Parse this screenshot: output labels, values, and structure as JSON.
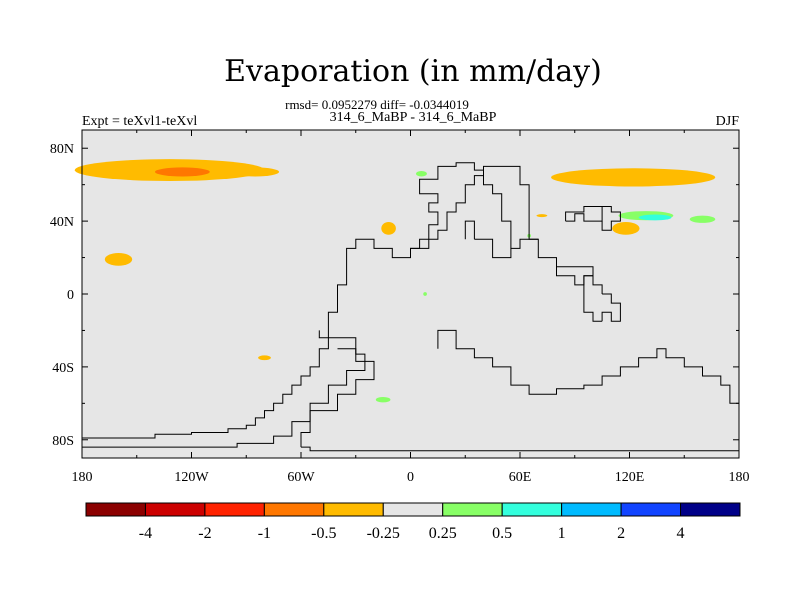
{
  "chart_data": {
    "type": "heatmap",
    "title": "Evaporation (in mm/day)",
    "stats_line": "rmsd= 0.0952279 diff= -0.0344019",
    "left_label": "Expt = teXvl1-teXvl",
    "center_label": "314_6_MaBP - 314_6_MaBP",
    "right_label": "DJF",
    "x_ticks": [
      "180",
      "120W",
      "60W",
      "0",
      "60E",
      "120E",
      "180"
    ],
    "y_ticks": [
      "80N",
      "40N",
      "0",
      "40S",
      "80S"
    ],
    "xlim": [
      -180,
      180
    ],
    "ylim": [
      -90,
      90
    ],
    "colorbar": {
      "labels": [
        "-4",
        "-2",
        "-1",
        "-0.5",
        "-0.25",
        "0.25",
        "0.5",
        "1",
        "2",
        "4"
      ],
      "colors": [
        "#8b0000",
        "#cc0000",
        "#ff2200",
        "#ff7700",
        "#ffbb00",
        "#e6e6e6",
        "#88ff66",
        "#33ffdd",
        "#00bbff",
        "#1144ff",
        "#000088"
      ]
    },
    "background_color": "#e6e6e6",
    "anomalies": [
      {
        "lon": -132,
        "lat": 68,
        "rx": 52,
        "ry": 6,
        "color": "#ffbb00",
        "range": "-0.5 to -0.25"
      },
      {
        "lon": -125,
        "lat": 67,
        "rx": 15,
        "ry": 2.5,
        "color": "#ff7700",
        "range": "-1 to -0.5"
      },
      {
        "lon": -85,
        "lat": 67,
        "rx": 13,
        "ry": 2.5,
        "color": "#ffbb00",
        "range": "-0.5 to -0.25"
      },
      {
        "lon": 122,
        "lat": 64,
        "rx": 45,
        "ry": 5,
        "color": "#ffbb00",
        "range": "-0.5 to -0.25"
      },
      {
        "lon": -160,
        "lat": 19,
        "rx": 7.5,
        "ry": 3.5,
        "color": "#ffbb00",
        "range": "-0.5 to -0.25"
      },
      {
        "lon": -12,
        "lat": 36,
        "rx": 4,
        "ry": 3.5,
        "color": "#ffbb00",
        "range": "-0.5 to -0.25"
      },
      {
        "lon": 118,
        "lat": 36,
        "rx": 7.5,
        "ry": 3.5,
        "color": "#ffbb00",
        "range": "-0.5 to -0.25"
      },
      {
        "lon": -80,
        "lat": -35,
        "rx": 3.5,
        "ry": 1.3,
        "color": "#ffbb00",
        "range": "-0.5 to -0.25"
      },
      {
        "lon": 72,
        "lat": 43,
        "rx": 3,
        "ry": 0.8,
        "color": "#ffbb00",
        "range": "-0.5 to -0.25"
      },
      {
        "lon": 129,
        "lat": 43,
        "rx": 15,
        "ry": 2.5,
        "color": "#88ff66",
        "range": "0.25 to 0.5"
      },
      {
        "lon": 134,
        "lat": 42,
        "rx": 9,
        "ry": 1.6,
        "color": "#33ffdd",
        "range": "0.5 to 1"
      },
      {
        "lon": 160,
        "lat": 41,
        "rx": 7,
        "ry": 2,
        "color": "#88ff66",
        "range": "0.25 to 0.5"
      },
      {
        "lon": 6,
        "lat": 66,
        "rx": 3,
        "ry": 1.5,
        "color": "#88ff66",
        "range": "0.25 to 0.5"
      },
      {
        "lon": 65,
        "lat": 32,
        "rx": 1,
        "ry": 1,
        "color": "#88ff66",
        "range": "0.25 to 0.5"
      },
      {
        "lon": 8,
        "lat": 0,
        "rx": 1,
        "ry": 1,
        "color": "#88ff66",
        "range": "0.25 to 0.5"
      },
      {
        "lon": -15,
        "lat": -58,
        "rx": 4,
        "ry": 1.5,
        "color": "#88ff66",
        "range": "0.25 to 0.5"
      }
    ],
    "coastlines": [
      [
        [
          -180,
          -79
        ],
        [
          -140,
          -79
        ],
        [
          -140,
          -77
        ],
        [
          -120,
          -77
        ],
        [
          -120,
          -76
        ],
        [
          -100,
          -76
        ],
        [
          -100,
          -74
        ],
        [
          -90,
          -74
        ],
        [
          -90,
          -72
        ],
        [
          -85,
          -72
        ],
        [
          -85,
          -68
        ],
        [
          -80,
          -68
        ],
        [
          -80,
          -64
        ],
        [
          -75,
          -64
        ],
        [
          -75,
          -60
        ],
        [
          -70,
          -60
        ],
        [
          -70,
          -55
        ],
        [
          -65,
          -55
        ],
        [
          -65,
          -50
        ],
        [
          -60,
          -50
        ],
        [
          -60,
          -45
        ],
        [
          -55,
          -45
        ],
        [
          -55,
          -40
        ],
        [
          -50,
          -40
        ],
        [
          -50,
          -30
        ],
        [
          -45,
          -30
        ],
        [
          -45,
          -10
        ],
        [
          -40,
          -10
        ],
        [
          -40,
          5
        ],
        [
          -35,
          5
        ],
        [
          -35,
          25
        ],
        [
          -30,
          25
        ],
        [
          -30,
          30
        ],
        [
          -20,
          30
        ],
        [
          -20,
          25
        ],
        [
          -10,
          25
        ],
        [
          -10,
          20
        ],
        [
          0,
          20
        ],
        [
          0,
          25
        ],
        [
          5,
          25
        ],
        [
          5,
          30
        ],
        [
          15,
          30
        ],
        [
          15,
          35
        ],
        [
          20,
          35
        ],
        [
          20,
          45
        ],
        [
          25,
          45
        ],
        [
          25,
          50
        ],
        [
          30,
          50
        ],
        [
          30,
          60
        ],
        [
          35,
          60
        ],
        [
          35,
          65
        ],
        [
          40,
          65
        ],
        [
          40,
          70
        ],
        [
          60,
          70
        ],
        [
          60,
          60
        ],
        [
          65,
          60
        ],
        [
          65,
          30
        ],
        [
          70,
          30
        ],
        [
          70,
          20
        ],
        [
          80,
          20
        ],
        [
          80,
          15
        ],
        [
          100,
          15
        ],
        [
          100,
          10
        ],
        [
          95,
          10
        ],
        [
          95,
          -10
        ],
        [
          100,
          -10
        ],
        [
          100,
          -15
        ],
        [
          105,
          -15
        ]
      ],
      [
        [
          -180,
          -84
        ],
        [
          -95,
          -84
        ],
        [
          -95,
          -82
        ],
        [
          -75,
          -82
        ],
        [
          -75,
          -78
        ],
        [
          -65,
          -78
        ],
        [
          -65,
          -70
        ],
        [
          -55,
          -70
        ],
        [
          -55,
          -60
        ],
        [
          -45,
          -60
        ],
        [
          -45,
          -50
        ],
        [
          -35,
          -50
        ],
        [
          -35,
          -42
        ],
        [
          -25,
          -42
        ],
        [
          -25,
          -33
        ],
        [
          -30,
          -33
        ],
        [
          -30,
          -24
        ],
        [
          -50,
          -24
        ],
        [
          -50,
          -20
        ],
        [
          -50,
          -24
        ]
      ],
      [
        [
          -60,
          -84
        ],
        [
          -60,
          -76
        ],
        [
          -55,
          -76
        ],
        [
          -55,
          -64
        ],
        [
          -40,
          -64
        ],
        [
          -40,
          -55
        ],
        [
          -30,
          -55
        ],
        [
          -30,
          -47
        ],
        [
          -20,
          -47
        ],
        [
          -20,
          -37
        ],
        [
          -30,
          -37
        ],
        [
          -30,
          -30
        ],
        [
          -40,
          -30
        ]
      ],
      [
        [
          -60,
          -84
        ],
        [
          -55,
          -84
        ],
        [
          -55,
          -86
        ],
        [
          180,
          -86
        ]
      ],
      [
        [
          15,
          -30
        ],
        [
          15,
          -20
        ],
        [
          25,
          -20
        ],
        [
          25,
          -30
        ],
        [
          35,
          -30
        ],
        [
          35,
          -35
        ],
        [
          45,
          -35
        ],
        [
          45,
          -40
        ],
        [
          55,
          -40
        ],
        [
          55,
          -50
        ],
        [
          65,
          -50
        ],
        [
          65,
          -55
        ],
        [
          80,
          -55
        ],
        [
          80,
          -52
        ],
        [
          95,
          -52
        ],
        [
          95,
          -50
        ],
        [
          105,
          -50
        ],
        [
          105,
          -45
        ],
        [
          115,
          -45
        ],
        [
          115,
          -40
        ],
        [
          125,
          -40
        ],
        [
          125,
          -35
        ],
        [
          135,
          -35
        ],
        [
          135,
          -30
        ],
        [
          140,
          -30
        ],
        [
          140,
          -35
        ],
        [
          150,
          -35
        ],
        [
          150,
          -40
        ],
        [
          160,
          -40
        ],
        [
          160,
          -45
        ],
        [
          170,
          -45
        ],
        [
          170,
          -50
        ],
        [
          175,
          -50
        ],
        [
          175,
          -60
        ],
        [
          180,
          -60
        ]
      ],
      [
        [
          0,
          20
        ],
        [
          0,
          25
        ],
        [
          10,
          25
        ],
        [
          10,
          38
        ],
        [
          15,
          38
        ],
        [
          15,
          45
        ],
        [
          10,
          45
        ],
        [
          10,
          50
        ],
        [
          15,
          50
        ],
        [
          15,
          55
        ],
        [
          5,
          55
        ],
        [
          5,
          63
        ],
        [
          15,
          63
        ],
        [
          15,
          70
        ],
        [
          25,
          70
        ],
        [
          25,
          72
        ],
        [
          35,
          72
        ],
        [
          35,
          68
        ],
        [
          40,
          68
        ],
        [
          40,
          60
        ],
        [
          45,
          60
        ],
        [
          45,
          55
        ],
        [
          50,
          55
        ],
        [
          50,
          40
        ],
        [
          55,
          40
        ],
        [
          55,
          25
        ]
      ],
      [
        [
          30,
          30
        ],
        [
          30,
          40
        ],
        [
          35,
          40
        ],
        [
          35,
          30
        ]
      ],
      [
        [
          35,
          30
        ],
        [
          45,
          30
        ],
        [
          45,
          20
        ],
        [
          55,
          20
        ],
        [
          55,
          25
        ],
        [
          60,
          25
        ],
        [
          60,
          30
        ],
        [
          70,
          30
        ]
      ],
      [
        [
          80,
          15
        ],
        [
          80,
          10
        ],
        [
          90,
          10
        ],
        [
          90,
          5
        ],
        [
          95,
          5
        ],
        [
          95,
          10
        ],
        [
          100,
          10
        ],
        [
          100,
          15
        ]
      ],
      [
        [
          105,
          -15
        ],
        [
          105,
          -10
        ],
        [
          110,
          -10
        ],
        [
          110,
          -15
        ],
        [
          115,
          -15
        ],
        [
          115,
          -5
        ],
        [
          110,
          -5
        ],
        [
          110,
          0
        ],
        [
          105,
          0
        ]
      ],
      [
        [
          105,
          0
        ],
        [
          105,
          5
        ],
        [
          100,
          5
        ],
        [
          100,
          10
        ]
      ],
      [
        [
          85,
          40
        ],
        [
          85,
          45
        ],
        [
          95,
          45
        ],
        [
          95,
          48
        ],
        [
          105,
          48
        ],
        [
          105,
          40
        ],
        [
          95,
          40
        ],
        [
          95,
          44
        ],
        [
          90,
          44
        ],
        [
          90,
          40
        ],
        [
          85,
          40
        ]
      ],
      [
        [
          105,
          48
        ],
        [
          110,
          48
        ],
        [
          110,
          45
        ],
        [
          115,
          45
        ],
        [
          115,
          40
        ],
        [
          110,
          40
        ],
        [
          110,
          35
        ],
        [
          105,
          35
        ],
        [
          105,
          40
        ]
      ]
    ]
  }
}
